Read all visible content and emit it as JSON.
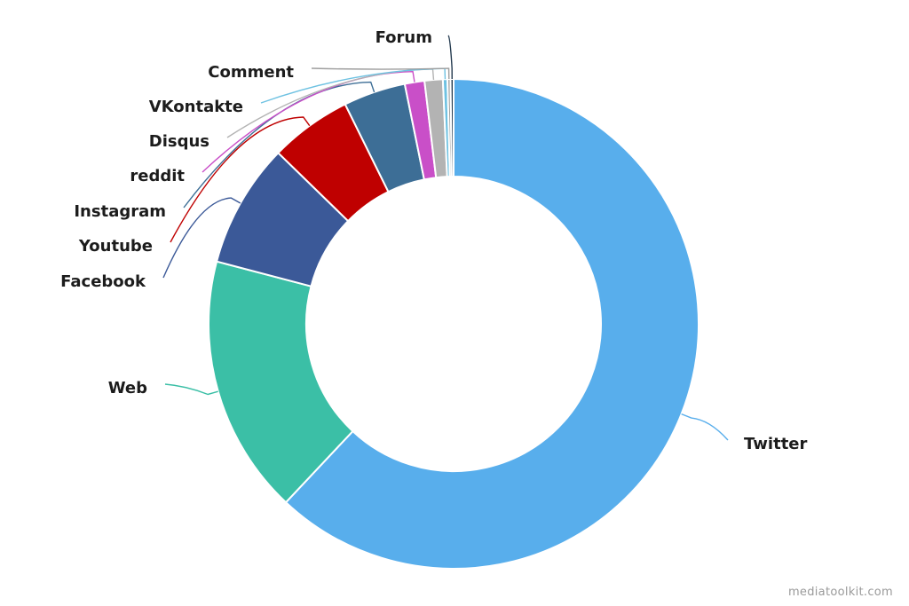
{
  "watermark": "mediatoolkit.com",
  "chart_data": {
    "type": "pie",
    "donut": true,
    "title": "",
    "categories": [
      "Twitter",
      "Web",
      "Facebook",
      "Youtube",
      "Instagram",
      "reddit",
      "Disqus",
      "VKontakte",
      "Comment",
      "Forum"
    ],
    "values": [
      62.0,
      17.1,
      8.2,
      5.4,
      4.1,
      1.3,
      1.2,
      0.3,
      0.2,
      0.2
    ],
    "unit": "%",
    "colors": [
      "#58aeec",
      "#3bbfa6",
      "#3b5998",
      "#bf0000",
      "#3d6e96",
      "#c94fc8",
      "#b3b3b3",
      "#6fc2e2",
      "#9e9e9e",
      "#243a4f"
    ],
    "legend": "none",
    "labels_placement": "outside with connector lines"
  }
}
